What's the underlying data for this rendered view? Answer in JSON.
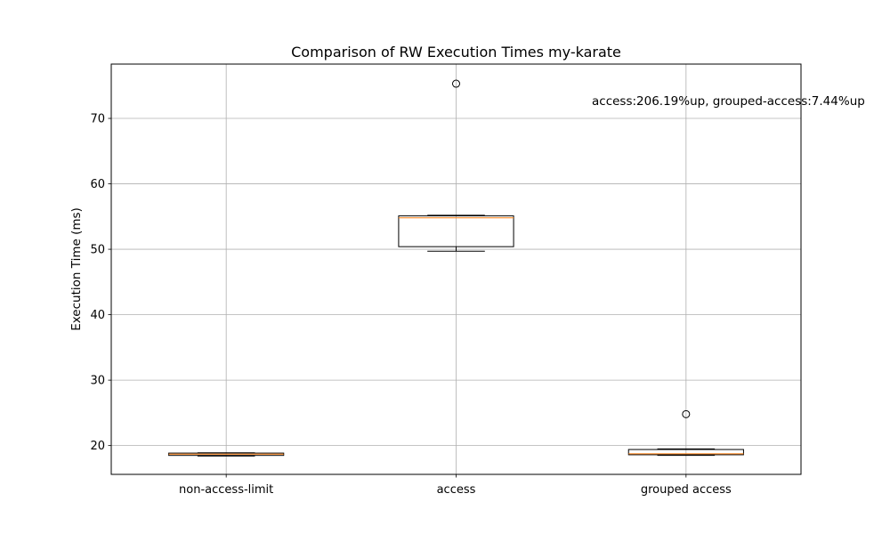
{
  "chart_data": {
    "type": "box",
    "title": "Comparison of RW Execution Times my-karate",
    "xlabel": "",
    "ylabel": "Execution Time (ms)",
    "ylim": [
      15.6,
      78.3
    ],
    "yticks": [
      20,
      30,
      40,
      50,
      60,
      70
    ],
    "grid": true,
    "annotation": "access:206.19%up, grouped-access:7.44%up",
    "categories": [
      "non-access-limit",
      "access",
      "grouped access"
    ],
    "boxes": [
      {
        "whisker_low": 18.4,
        "q1": 18.5,
        "median": 18.7,
        "q3": 18.85,
        "whisker_high": 18.9,
        "outliers": []
      },
      {
        "whisker_low": 49.7,
        "q1": 50.4,
        "median": 54.8,
        "q3": 55.1,
        "whisker_high": 55.2,
        "outliers": [
          75.3
        ]
      },
      {
        "whisker_low": 18.5,
        "q1": 18.6,
        "median": 18.75,
        "q3": 19.4,
        "whisker_high": 19.5,
        "outliers": [
          24.8
        ]
      }
    ],
    "colors": {
      "box": "#000000",
      "median": "#ff7f0e",
      "grid": "#b0b0b0",
      "axes": "#000000"
    }
  }
}
